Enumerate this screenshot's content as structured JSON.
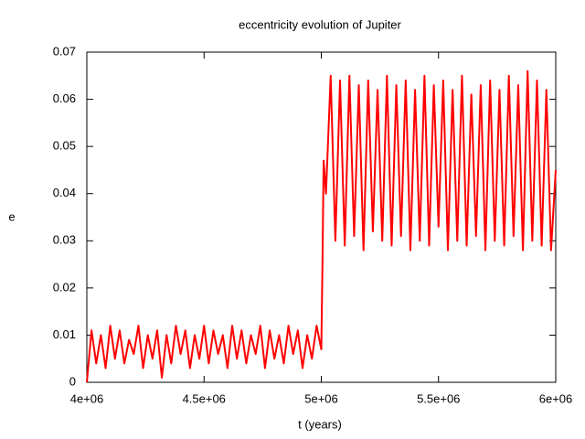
{
  "chart_data": {
    "type": "line",
    "title": "eccentricity evolution of Jupiter",
    "xlabel": "t (years)",
    "ylabel": "e",
    "color": "#ff0000",
    "xlim": [
      4000000,
      6000000
    ],
    "xticks": [
      {
        "value": 4000000,
        "label": "4e+06"
      },
      {
        "value": 4500000,
        "label": "4.5e+06"
      },
      {
        "value": 5000000,
        "label": "5e+06"
      },
      {
        "value": 5500000,
        "label": "5.5e+06"
      },
      {
        "value": 6000000,
        "label": "6e+06"
      }
    ],
    "ylim": [
      0,
      0.07
    ],
    "yticks": [
      0,
      0.01,
      0.02,
      0.03,
      0.04,
      0.05,
      0.06,
      0.07
    ],
    "x": [
      4000000,
      4020000,
      4040000,
      4060000,
      4080000,
      4100000,
      4120000,
      4140000,
      4160000,
      4180000,
      4200000,
      4220000,
      4240000,
      4260000,
      4280000,
      4300000,
      4320000,
      4340000,
      4360000,
      4380000,
      4400000,
      4420000,
      4440000,
      4460000,
      4480000,
      4500000,
      4520000,
      4540000,
      4560000,
      4580000,
      4600000,
      4620000,
      4640000,
      4660000,
      4680000,
      4700000,
      4720000,
      4740000,
      4760000,
      4780000,
      4800000,
      4820000,
      4840000,
      4860000,
      4880000,
      4900000,
      4920000,
      4940000,
      4960000,
      4980000,
      5000000,
      5005000,
      5010000,
      5020000,
      5040000,
      5060000,
      5080000,
      5100000,
      5120000,
      5140000,
      5160000,
      5180000,
      5200000,
      5220000,
      5240000,
      5260000,
      5280000,
      5300000,
      5320000,
      5340000,
      5360000,
      5380000,
      5400000,
      5420000,
      5440000,
      5460000,
      5480000,
      5500000,
      5520000,
      5540000,
      5560000,
      5580000,
      5600000,
      5620000,
      5640000,
      5660000,
      5680000,
      5700000,
      5720000,
      5740000,
      5760000,
      5780000,
      5800000,
      5820000,
      5840000,
      5860000,
      5880000,
      5900000,
      5920000,
      5940000,
      5960000,
      5980000,
      6000000
    ],
    "values": [
      0.0,
      0.011,
      0.004,
      0.01,
      0.003,
      0.012,
      0.005,
      0.011,
      0.004,
      0.009,
      0.006,
      0.012,
      0.003,
      0.01,
      0.005,
      0.011,
      0.001,
      0.01,
      0.004,
      0.012,
      0.006,
      0.011,
      0.003,
      0.01,
      0.005,
      0.012,
      0.004,
      0.011,
      0.006,
      0.01,
      0.003,
      0.012,
      0.005,
      0.011,
      0.004,
      0.01,
      0.006,
      0.012,
      0.003,
      0.011,
      0.005,
      0.01,
      0.004,
      0.012,
      0.006,
      0.011,
      0.003,
      0.01,
      0.005,
      0.012,
      0.007,
      0.025,
      0.047,
      0.04,
      0.065,
      0.03,
      0.064,
      0.029,
      0.065,
      0.031,
      0.063,
      0.028,
      0.064,
      0.032,
      0.062,
      0.03,
      0.065,
      0.029,
      0.063,
      0.031,
      0.064,
      0.028,
      0.062,
      0.03,
      0.065,
      0.029,
      0.063,
      0.033,
      0.064,
      0.028,
      0.062,
      0.03,
      0.065,
      0.029,
      0.061,
      0.031,
      0.063,
      0.028,
      0.064,
      0.03,
      0.062,
      0.029,
      0.065,
      0.031,
      0.063,
      0.028,
      0.066,
      0.03,
      0.064,
      0.029,
      0.062,
      0.028,
      0.045
    ]
  }
}
